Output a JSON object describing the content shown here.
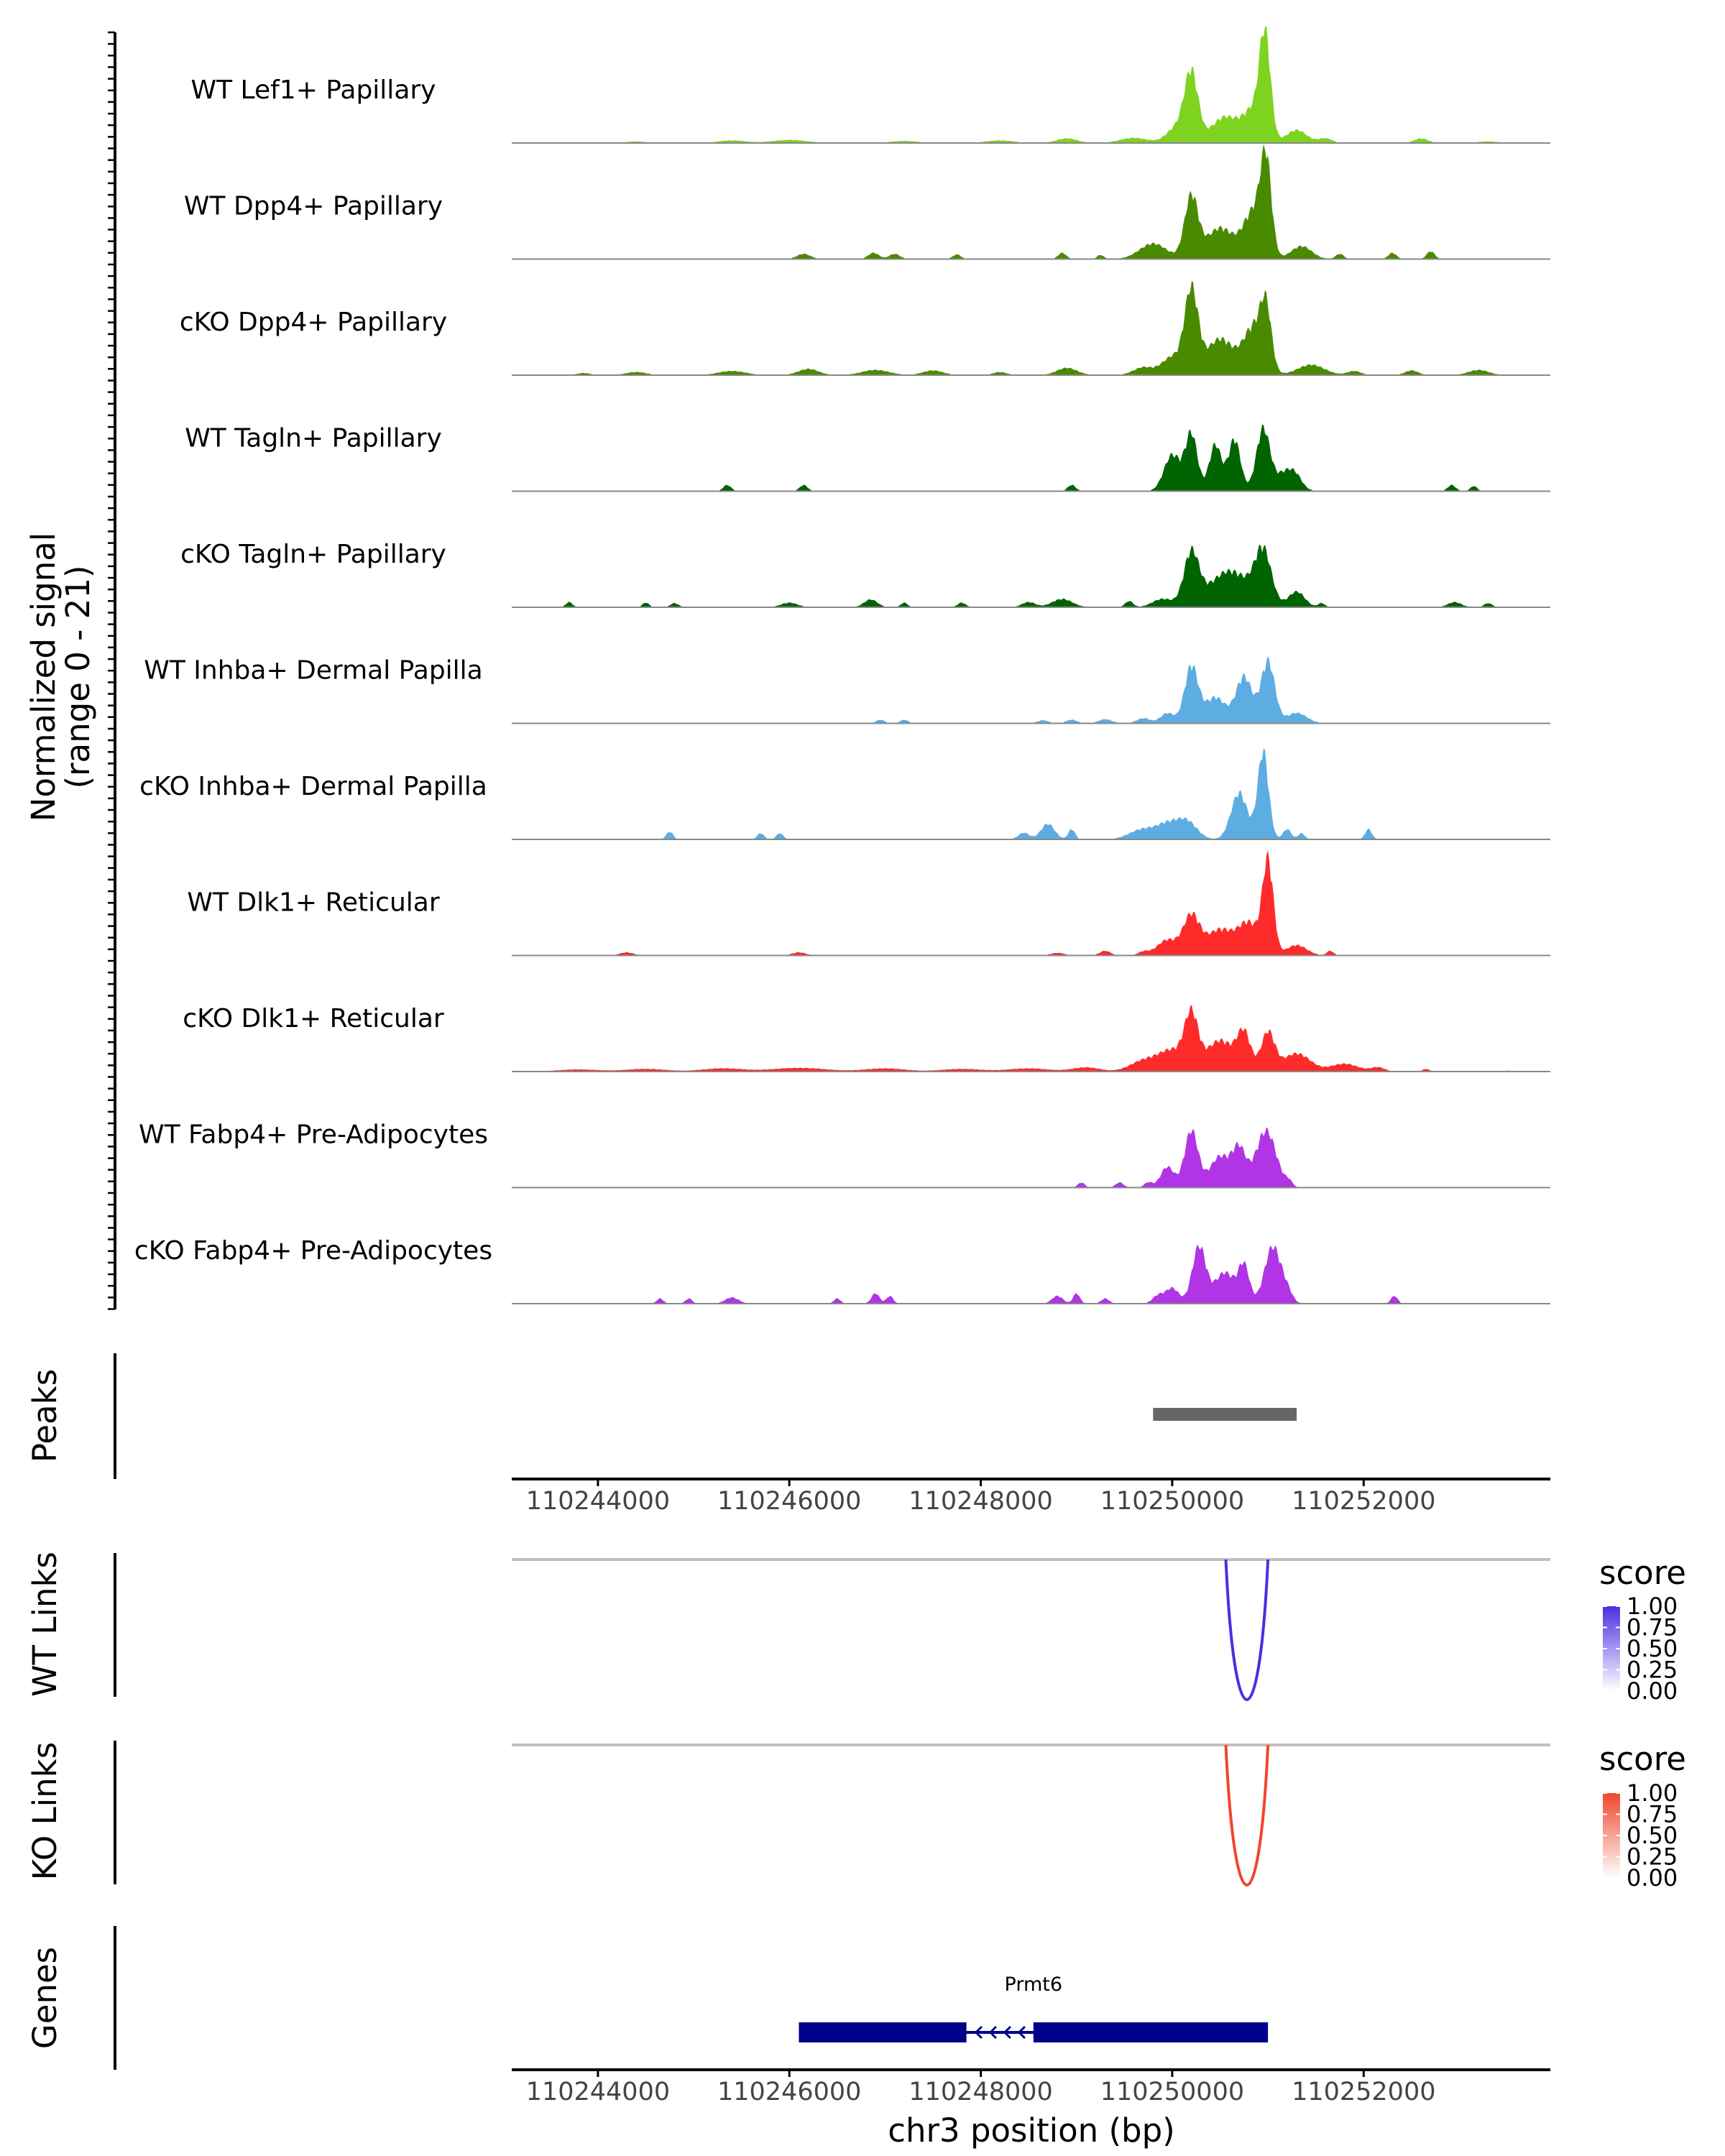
{
  "chart_data": {
    "type": "area",
    "title": "",
    "xlabel": "chr3 position (bp)",
    "ylabel": "Normalized signal",
    "ylabel_range": "(range 0 - 21)",
    "xlim": [
      110243100,
      110253950
    ],
    "ylim": [
      0,
      21
    ],
    "x_ticks": [
      110244000,
      110246000,
      110248000,
      110250000,
      110252000
    ],
    "x_tick_labels": [
      "110244000",
      "110246000",
      "110248000",
      "110250000",
      "110252000"
    ],
    "coverage_tracks": [
      {
        "name": "WT Lef1+ Papillary",
        "color": "#7ED321",
        "bumps": [
          [
            110244400,
            150,
            0.3
          ],
          [
            110245400,
            200,
            0.5
          ],
          [
            110246000,
            250,
            0.6
          ],
          [
            110247200,
            200,
            0.4
          ],
          [
            110248200,
            200,
            0.5
          ],
          [
            110248900,
            150,
            0.9
          ],
          [
            110249600,
            200,
            1.0
          ],
          [
            110250050,
            150,
            3.0
          ],
          [
            110250200,
            100,
            13.0
          ],
          [
            110250550,
            200,
            5.0
          ],
          [
            110250850,
            150,
            6.0
          ],
          [
            110250970,
            80,
            19.5
          ],
          [
            110251300,
            150,
            2.5
          ],
          [
            110251600,
            100,
            0.9
          ],
          [
            110252600,
            100,
            0.9
          ],
          [
            110253300,
            150,
            0.3
          ]
        ]
      },
      {
        "name": "WT Dpp4+ Papillary",
        "color": "#4A8A00",
        "bumps": [
          [
            110246150,
            100,
            1.0
          ],
          [
            110246880,
            80,
            1.2
          ],
          [
            110247100,
            80,
            1.0
          ],
          [
            110247750,
            60,
            0.9
          ],
          [
            110248850,
            60,
            1.2
          ],
          [
            110249250,
            50,
            0.8
          ],
          [
            110249800,
            200,
            3.0
          ],
          [
            110250200,
            100,
            12.0
          ],
          [
            110250500,
            200,
            6.0
          ],
          [
            110250850,
            150,
            9.0
          ],
          [
            110250980,
            80,
            17.0
          ],
          [
            110251350,
            150,
            2.5
          ],
          [
            110251750,
            60,
            1.0
          ],
          [
            110252300,
            60,
            1.2
          ],
          [
            110252700,
            60,
            1.5
          ]
        ]
      },
      {
        "name": "cKO Dpp4+ Papillary",
        "color": "#4A8A00",
        "bumps": [
          [
            110243850,
            100,
            0.4
          ],
          [
            110244400,
            150,
            0.6
          ],
          [
            110245400,
            200,
            0.8
          ],
          [
            110246200,
            150,
            1.2
          ],
          [
            110246900,
            200,
            1.0
          ],
          [
            110247500,
            150,
            0.9
          ],
          [
            110248200,
            100,
            0.6
          ],
          [
            110248900,
            150,
            1.4
          ],
          [
            110249700,
            150,
            1.5
          ],
          [
            110250000,
            150,
            3.5
          ],
          [
            110250200,
            100,
            16.0
          ],
          [
            110250500,
            200,
            7.0
          ],
          [
            110250850,
            150,
            9.0
          ],
          [
            110250980,
            80,
            11.0
          ],
          [
            110251450,
            200,
            2.0
          ],
          [
            110251900,
            100,
            0.8
          ],
          [
            110252500,
            100,
            0.9
          ],
          [
            110253200,
            150,
            1.0
          ]
        ]
      },
      {
        "name": "WT Tagln+ Papillary",
        "color": "#006400",
        "bumps": [
          [
            110245350,
            60,
            1.2
          ],
          [
            110246150,
            60,
            1.2
          ],
          [
            110248950,
            60,
            1.2
          ],
          [
            110250000,
            120,
            7.0
          ],
          [
            110250200,
            90,
            11.0
          ],
          [
            110250450,
            90,
            9.0
          ],
          [
            110250650,
            90,
            10.0
          ],
          [
            110250950,
            100,
            12.0
          ],
          [
            110251200,
            150,
            4.0
          ],
          [
            110251300,
            80,
            1.0
          ],
          [
            110252920,
            60,
            1.2
          ],
          [
            110253150,
            50,
            1.0
          ]
        ]
      },
      {
        "name": "cKO Tagln+ Papillary",
        "color": "#006400",
        "bumps": [
          [
            110243700,
            50,
            1.0
          ],
          [
            110244500,
            50,
            0.9
          ],
          [
            110244800,
            60,
            0.8
          ],
          [
            110246000,
            120,
            0.9
          ],
          [
            110246850,
            100,
            1.5
          ],
          [
            110247200,
            50,
            0.9
          ],
          [
            110247800,
            60,
            0.9
          ],
          [
            110248500,
            100,
            1.0
          ],
          [
            110248850,
            150,
            1.6
          ],
          [
            110249550,
            60,
            1.2
          ],
          [
            110249900,
            150,
            1.6
          ],
          [
            110250200,
            110,
            10.0
          ],
          [
            110250600,
            300,
            7.0
          ],
          [
            110250950,
            120,
            10.0
          ],
          [
            110251300,
            120,
            3.0
          ],
          [
            110251560,
            50,
            0.8
          ],
          [
            110252950,
            100,
            1.0
          ],
          [
            110253300,
            60,
            0.8
          ]
        ]
      },
      {
        "name": "WT Inhba+ Dermal Papilla",
        "color": "#5DADE2",
        "bumps": [
          [
            110246950,
            60,
            0.7
          ],
          [
            110247200,
            60,
            0.7
          ],
          [
            110248650,
            80,
            0.6
          ],
          [
            110248950,
            80,
            0.7
          ],
          [
            110249300,
            100,
            0.8
          ],
          [
            110249700,
            100,
            1.0
          ],
          [
            110249950,
            100,
            2.0
          ],
          [
            110250200,
            100,
            11.0
          ],
          [
            110250450,
            150,
            5.0
          ],
          [
            110250750,
            120,
            9.0
          ],
          [
            110251000,
            100,
            12.0
          ],
          [
            110251300,
            150,
            2.0
          ]
        ]
      },
      {
        "name": "cKO Inhba+ Dermal Papilla",
        "color": "#5DADE2",
        "bumps": [
          [
            110244750,
            50,
            1.5
          ],
          [
            110245700,
            50,
            1.2
          ],
          [
            110245900,
            50,
            1.2
          ],
          [
            110248450,
            80,
            1.3
          ],
          [
            110248700,
            100,
            3.0
          ],
          [
            110248950,
            50,
            2.0
          ],
          [
            110249700,
            200,
            2.0
          ],
          [
            110249950,
            150,
            2.5
          ],
          [
            110250150,
            150,
            3.5
          ],
          [
            110250700,
            120,
            9.0
          ],
          [
            110250950,
            80,
            17.0
          ],
          [
            110251200,
            60,
            2.0
          ],
          [
            110251350,
            50,
            1.2
          ],
          [
            110252050,
            50,
            2.0
          ]
        ]
      },
      {
        "name": "WT Dlk1+ Reticular",
        "color": "#FF2A2A",
        "bumps": [
          [
            110244300,
            100,
            0.6
          ],
          [
            110246100,
            100,
            0.6
          ],
          [
            110248800,
            100,
            0.5
          ],
          [
            110249300,
            80,
            0.9
          ],
          [
            110249700,
            80,
            0.7
          ],
          [
            110249950,
            150,
            3.0
          ],
          [
            110250200,
            120,
            7.5
          ],
          [
            110250500,
            200,
            5.0
          ],
          [
            110250800,
            150,
            6.0
          ],
          [
            110251000,
            80,
            18.0
          ],
          [
            110251300,
            150,
            2.0
          ],
          [
            110251650,
            50,
            0.9
          ]
        ]
      },
      {
        "name": "cKO Dlk1+ Reticular",
        "color": "#FF2A2A",
        "bumps": [
          [
            110243800,
            300,
            0.4
          ],
          [
            110244500,
            300,
            0.5
          ],
          [
            110245300,
            300,
            0.6
          ],
          [
            110246100,
            400,
            0.7
          ],
          [
            110247000,
            300,
            0.6
          ],
          [
            110247800,
            300,
            0.5
          ],
          [
            110248500,
            300,
            0.6
          ],
          [
            110249100,
            200,
            0.8
          ],
          [
            110249700,
            200,
            2.0
          ],
          [
            110250000,
            200,
            4.0
          ],
          [
            110250200,
            100,
            10.0
          ],
          [
            110250500,
            200,
            6.0
          ],
          [
            110250750,
            100,
            7.0
          ],
          [
            110251000,
            100,
            7.5
          ],
          [
            110251300,
            200,
            3.5
          ],
          [
            110251800,
            200,
            1.5
          ],
          [
            110252150,
            100,
            0.8
          ],
          [
            110252650,
            50,
            0.5
          ],
          [
            110253500,
            30,
            0.2
          ]
        ]
      },
      {
        "name": "WT Fabp4+ Pre-Adipocytes",
        "color": "#B134E6",
        "bumps": [
          [
            110249050,
            50,
            1.0
          ],
          [
            110249450,
            60,
            1.0
          ],
          [
            110249750,
            60,
            1.0
          ],
          [
            110249950,
            100,
            4.0
          ],
          [
            110250200,
            100,
            11.0
          ],
          [
            110250500,
            150,
            6.0
          ],
          [
            110250700,
            100,
            7.0
          ],
          [
            110250980,
            150,
            11.0
          ],
          [
            110251220,
            50,
            1.0
          ]
        ]
      },
      {
        "name": "cKO Fabp4+ Pre-Adipocytes",
        "color": "#B134E6",
        "bumps": [
          [
            110244650,
            50,
            1.0
          ],
          [
            110244950,
            50,
            1.0
          ],
          [
            110245400,
            100,
            1.2
          ],
          [
            110246500,
            50,
            1.0
          ],
          [
            110246900,
            60,
            2.0
          ],
          [
            110247050,
            50,
            1.5
          ],
          [
            110248800,
            80,
            1.5
          ],
          [
            110249000,
            50,
            2.0
          ],
          [
            110249300,
            60,
            1.0
          ],
          [
            110249850,
            80,
            1.5
          ],
          [
            110250000,
            100,
            3.0
          ],
          [
            110250280,
            100,
            11.0
          ],
          [
            110250550,
            150,
            6.0
          ],
          [
            110250750,
            80,
            7.0
          ],
          [
            110251050,
            120,
            11.0
          ],
          [
            110251200,
            80,
            2.0
          ],
          [
            110252320,
            50,
            1.5
          ]
        ]
      }
    ],
    "peaks": {
      "label": "Peaks",
      "ranges": [
        [
          110249800,
          110251300
        ]
      ],
      "color": "#666666"
    },
    "links": [
      {
        "label": "WT Links",
        "legend_title": "score",
        "color": "#4B2FE0",
        "start": 110250560,
        "end": 110251000,
        "score": 1.0,
        "legend_ticks": [
          "1.00",
          "0.75",
          "0.50",
          "0.25",
          "0.00"
        ]
      },
      {
        "label": "KO Links",
        "legend_title": "score",
        "color": "#F0462D",
        "start": 110250560,
        "end": 110251000,
        "score": 1.0,
        "legend_ticks": [
          "1.00",
          "0.75",
          "0.50",
          "0.25",
          "0.00"
        ]
      }
    ],
    "genes": {
      "label": "Genes",
      "color": "#00008B",
      "items": [
        {
          "name": "Prmt6",
          "start": 110246100,
          "end": 110251000,
          "strand": "-",
          "exons": [
            [
              110246100,
              110247850
            ],
            [
              110248550,
              110251000
            ]
          ],
          "arrows_at": [
            110247950,
            110248100,
            110248250,
            110248400
          ]
        }
      ]
    }
  }
}
